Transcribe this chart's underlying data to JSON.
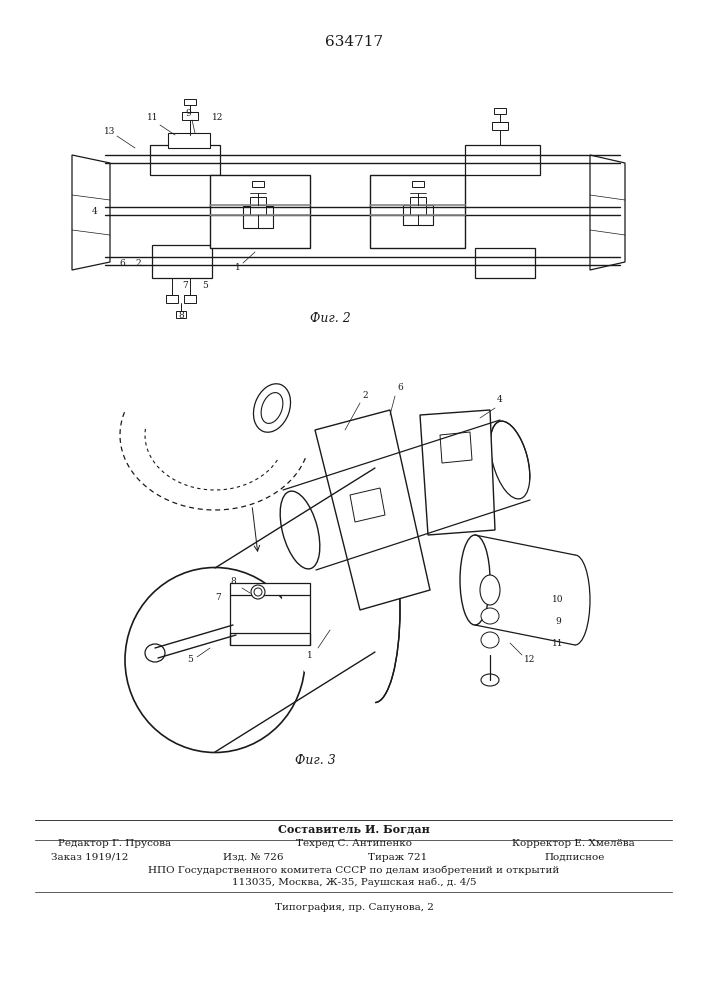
{
  "patent_number": "634717",
  "fig2_label": "Фиг. 2",
  "fig3_label": "Фиг. 3",
  "footer_line1": "Составитель И. Богдан",
  "footer_col1_ed": "Редактор Г. Прусова",
  "footer_col2_ed": "Техред С. Антипенко",
  "footer_col3_ed": "Корректор Е. Хмелёва",
  "footer_zak": "Заказ 1919/12",
  "footer_izd": "Изд. № 726",
  "footer_tir": "Тираж 721",
  "footer_pod": "Подписное",
  "footer_npo": "НПО Государственного комитета СССР по делам изобретений и открытий",
  "footer_addr": "113035, Москва, Ж-35, Раушская наб., д. 4/5",
  "footer_tip": "Типография, пр. Сапунова, 2",
  "bg_color": "#ffffff",
  "lc": "#1a1a1a"
}
